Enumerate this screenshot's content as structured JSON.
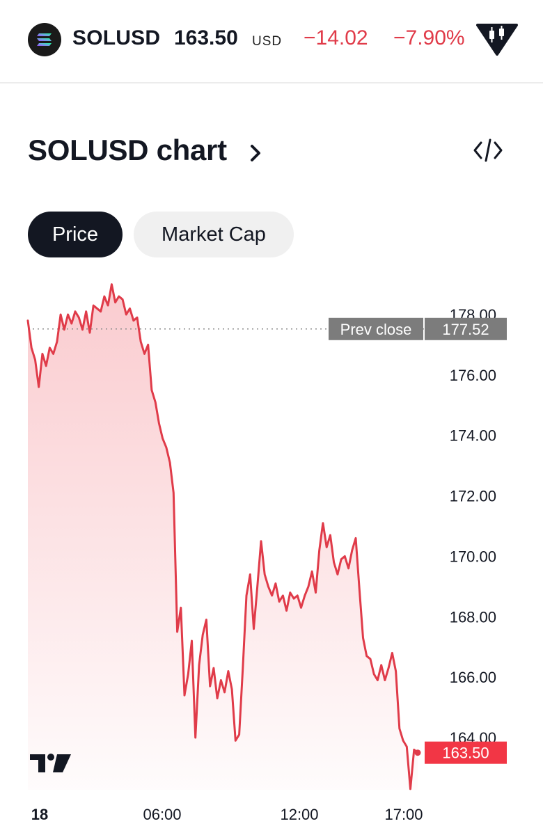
{
  "header": {
    "symbol": "SOLUSD",
    "price": "163.50",
    "currency": "USD",
    "change": "−14.02",
    "change_percent": "−7.90%",
    "logo_icon": "solana-logo-icon",
    "badge_icon": "candlestick-badge-icon",
    "negative_color": "#e03b49"
  },
  "section": {
    "title": "SOLUSD chart",
    "title_icon": "chevron-right-icon",
    "embed_icon": "code-embed-icon"
  },
  "tabs": [
    {
      "label": "Price",
      "selected": true
    },
    {
      "label": "Market Cap",
      "selected": false
    }
  ],
  "chart_data": {
    "type": "area",
    "y_ticks": [
      "178.00",
      "176.00",
      "174.00",
      "172.00",
      "170.00",
      "168.00",
      "166.00",
      "164.00"
    ],
    "x_ticks": [
      "18",
      "06:00",
      "12:00",
      "17:00"
    ],
    "ylim": [
      162,
      179
    ],
    "prev_close": {
      "label": "Prev close",
      "value": "177.52",
      "y": 177.52
    },
    "last_price": {
      "label": "163.50",
      "y": 163.5
    },
    "line_color": "#e03b49",
    "watermark_icon": "tradingview-logo-icon",
    "series": [
      {
        "values": [
          177.8,
          176.9,
          176.5,
          175.6,
          176.7,
          176.3,
          176.9,
          176.7,
          177.1,
          178.0,
          177.5,
          178.0,
          177.7,
          178.1,
          177.9,
          177.5,
          178.1,
          177.4,
          178.3,
          178.2,
          178.1,
          178.6,
          178.3,
          179.0,
          178.4,
          178.6,
          178.5,
          178.0,
          178.2,
          177.8,
          177.9,
          177.1,
          176.7,
          177.0,
          175.5,
          175.1,
          174.4,
          173.9,
          173.6,
          173.1,
          172.1,
          167.5,
          168.3,
          165.4,
          166.1,
          167.2,
          164.0,
          166.4,
          167.4,
          167.9,
          165.7,
          166.3,
          165.3,
          165.9,
          165.5,
          166.2,
          165.6,
          163.9,
          164.1,
          166.3,
          168.7,
          169.4,
          167.6,
          169.0,
          170.5,
          169.4,
          169.0,
          168.7,
          169.1,
          168.5,
          168.7,
          168.2,
          168.8,
          168.6,
          168.7,
          168.3,
          168.7,
          169.0,
          169.5,
          168.8,
          170.2,
          171.1,
          170.3,
          170.7,
          169.8,
          169.4,
          169.9,
          170.0,
          169.6,
          170.2,
          170.6,
          168.9,
          167.3,
          166.7,
          166.6,
          166.1,
          165.9,
          166.4,
          165.9,
          166.3,
          166.8,
          166.2,
          164.3,
          163.9,
          163.7,
          162.3,
          163.6,
          163.5
        ]
      }
    ]
  }
}
